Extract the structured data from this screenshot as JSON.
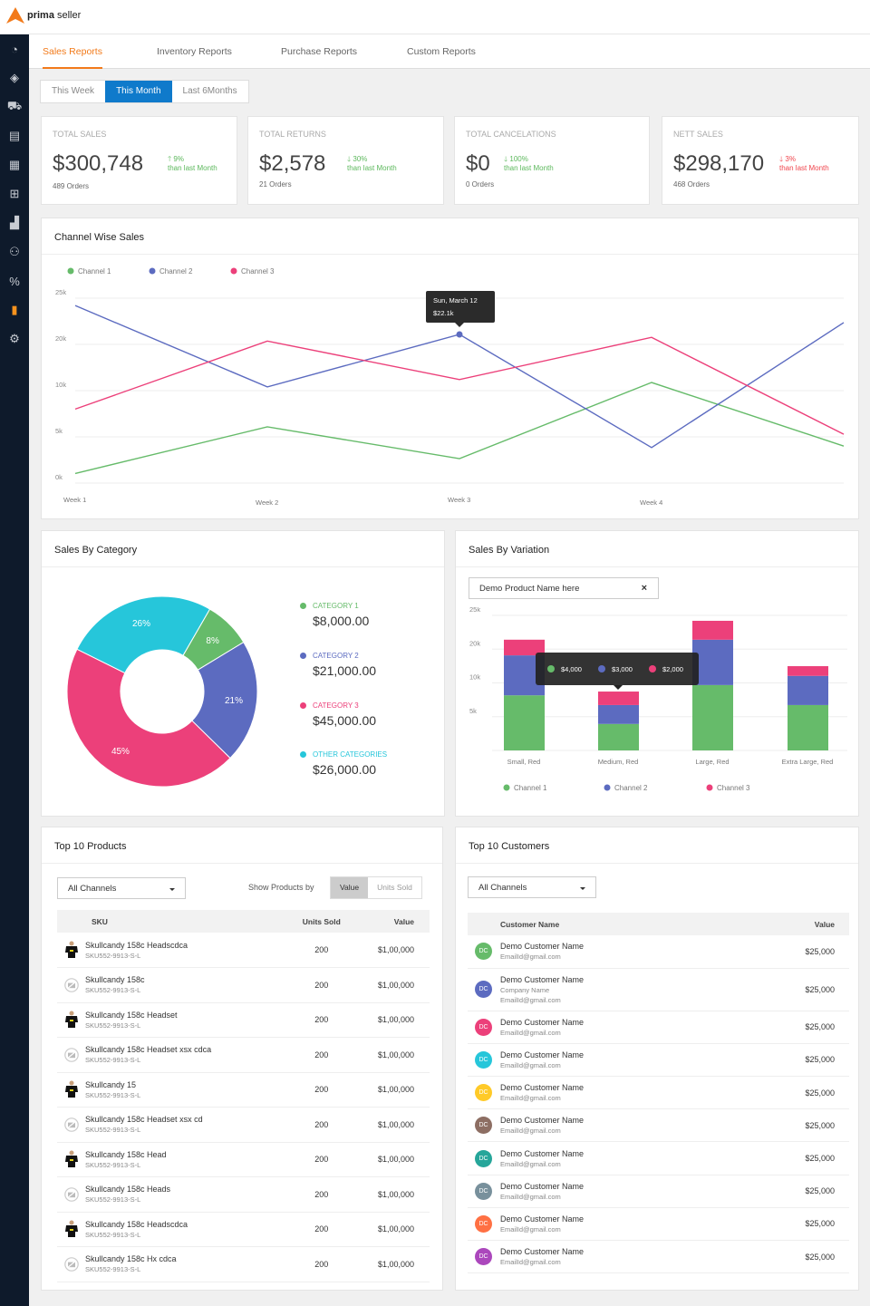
{
  "app": {
    "logo_bold": "prima",
    "logo_rest": "seller"
  },
  "sidebar": {
    "items": [
      {
        "icon": "dashboard-icon"
      },
      {
        "icon": "tag-icon"
      },
      {
        "icon": "cart-icon"
      },
      {
        "icon": "store-icon"
      },
      {
        "icon": "building-icon"
      },
      {
        "icon": "hierarchy-icon"
      },
      {
        "icon": "inventory-icon"
      },
      {
        "icon": "users-icon"
      },
      {
        "icon": "percent-icon"
      },
      {
        "icon": "bar-chart-icon",
        "active": true
      },
      {
        "icon": "gear-icon"
      }
    ]
  },
  "tabs": [
    "Sales Reports",
    "Inventory Reports",
    "Purchase Reports",
    "Custom Reports"
  ],
  "period": [
    "This Week",
    "This Month",
    "Last 6Months"
  ],
  "kpis": [
    {
      "label": "TOTAL SALES",
      "value": "$300,748",
      "change": "9%",
      "dir": "up",
      "note": "than last Month",
      "orders": "489 Orders",
      "color": "#5cb85c"
    },
    {
      "label": "TOTAL RETURNS",
      "value": "$2,578",
      "change": "30%",
      "dir": "down",
      "note": "than last Month",
      "orders": "21 Orders",
      "color": "#5cb85c"
    },
    {
      "label": "TOTAL CANCELATIONS",
      "value": "$0",
      "change": "100%",
      "dir": "down",
      "note": "than last Month",
      "orders": "0 Orders",
      "color": "#5cb85c"
    },
    {
      "label": "NETT SALES",
      "value": "$298,170",
      "change": "3%",
      "dir": "down",
      "note": "than last Month",
      "orders": "468 Orders",
      "color": "#f0464e"
    }
  ],
  "channel_chart": {
    "title": "Channel Wise Sales",
    "tooltip": {
      "title": "Sun, March 12",
      "value": "$22.1k"
    }
  },
  "category": {
    "title": "Sales By Category",
    "items": [
      {
        "label": "CATEGORY 1",
        "value": "$8,000.00",
        "pct": 8,
        "pct_label": "8%",
        "color": "#66bb6a"
      },
      {
        "label": "CATEGORY 2",
        "value": "$21,000.00",
        "pct": 21,
        "pct_label": "21%",
        "color": "#5c6bc0"
      },
      {
        "label": "CATEGORY 3",
        "value": "$45,000.00",
        "pct": 45,
        "pct_label": "45%",
        "color": "#ec407a"
      },
      {
        "label": "OTHER CATEGORIES",
        "value": "$26,000.00",
        "pct": 26,
        "pct_label": "26%",
        "color": "#26c6da"
      }
    ]
  },
  "variation": {
    "title": "Sales By Variation",
    "product": "Demo Product Name here",
    "clear": "×",
    "tooltip": [
      "$4,000",
      "$3,000",
      "$2,000"
    ]
  },
  "chart_data": [
    {
      "type": "line",
      "title": "Channel Wise Sales",
      "categories": [
        "Week 1",
        "Week 2",
        "Week 3",
        "Week 4",
        ""
      ],
      "yticks": [
        "0k",
        "5k",
        "10k",
        "20k",
        "25k"
      ],
      "ylim": [
        0,
        25
      ],
      "series": [
        {
          "name": "Channel 1",
          "color": "#66bb6a",
          "values": [
            1.3,
            7.6,
            3.3,
            13.6,
            5
          ]
        },
        {
          "name": "Channel 2",
          "color": "#5c6bc0",
          "values": [
            24,
            13,
            20.1,
            4.8,
            21.7
          ]
        },
        {
          "name": "Channel 3",
          "color": "#ec407a",
          "values": [
            10,
            19.2,
            14,
            19.7,
            6.6
          ]
        }
      ],
      "legend": "top-left",
      "grid": true
    },
    {
      "type": "bar",
      "stacked": true,
      "title": "Sales By Variation",
      "categories": [
        "Small, Red",
        "Medium, Red",
        "Large, Red",
        "Extra Large, Red"
      ],
      "yticks": [
        "",
        "5k",
        "10k",
        "20k",
        "25k"
      ],
      "ylim": [
        0,
        25
      ],
      "series": [
        {
          "name": "Channel 1",
          "color": "#66bb6a",
          "values": [
            10.2,
            4.9,
            12.1,
            8.4
          ]
        },
        {
          "name": "Channel 2",
          "color": "#5c6bc0",
          "values": [
            7.4,
            3.5,
            8.4,
            5.4
          ]
        },
        {
          "name": "Channel 3",
          "color": "#ec407a",
          "values": [
            2.9,
            2.5,
            3.5,
            1.8
          ]
        }
      ],
      "legend": "bottom"
    }
  ],
  "products": {
    "title": "Top 10 Products",
    "channel": "All Channels",
    "show_by": "Show Products by",
    "toggle": [
      "Value",
      "Units Sold"
    ],
    "columns": [
      "SKU",
      "Units Sold",
      "Value"
    ],
    "rows": [
      {
        "name": "Skullcandy 158c Headscdca",
        "sku": "SKU552-9913-S-L",
        "units": "200",
        "value": "$1,00,000",
        "img": "shirt"
      },
      {
        "name": "Skullcandy 158c",
        "sku": "SKU552-9913-S-L",
        "units": "200",
        "value": "$1,00,000",
        "img": "none"
      },
      {
        "name": "Skullcandy 158c Headset",
        "sku": "SKU552-9913-S-L",
        "units": "200",
        "value": "$1,00,000",
        "img": "shirt"
      },
      {
        "name": "Skullcandy 158c Headset xsx cdca",
        "sku": "SKU552-9913-S-L",
        "units": "200",
        "value": "$1,00,000",
        "img": "none"
      },
      {
        "name": "Skullcandy 15",
        "sku": "SKU552-9913-S-L",
        "units": "200",
        "value": "$1,00,000",
        "img": "shirt"
      },
      {
        "name": "Skullcandy 158c Headset xsx cd",
        "sku": "SKU552-9913-S-L",
        "units": "200",
        "value": "$1,00,000",
        "img": "none"
      },
      {
        "name": "Skullcandy 158c Head",
        "sku": "SKU552-9913-S-L",
        "units": "200",
        "value": "$1,00,000",
        "img": "shirt"
      },
      {
        "name": "Skullcandy 158c Heads",
        "sku": "SKU552-9913-S-L",
        "units": "200",
        "value": "$1,00,000",
        "img": "none"
      },
      {
        "name": "Skullcandy 158c Headscdca",
        "sku": "SKU552-9913-S-L",
        "units": "200",
        "value": "$1,00,000",
        "img": "shirt"
      },
      {
        "name": "Skullcandy 158c Hx cdca",
        "sku": "SKU552-9913-S-L",
        "units": "200",
        "value": "$1,00,000",
        "img": "none"
      }
    ]
  },
  "customers": {
    "title": "Top 10 Customers",
    "channel": "All Channels",
    "columns": [
      "Customer Name",
      "Value"
    ],
    "rows": [
      {
        "initials": "DC",
        "name": "Demo Customer Name",
        "email": "EmailId@gmail.com",
        "value": "$25,000",
        "color": "#66bb6a"
      },
      {
        "initials": "DC",
        "name": "Demo Customer Name",
        "company": "Company Name",
        "email": "EmailId@gmail.com",
        "value": "$25,000",
        "color": "#5c6bc0"
      },
      {
        "initials": "DC",
        "name": "Demo Customer Name",
        "email": "EmailId@gmail.com",
        "value": "$25,000",
        "color": "#ec407a"
      },
      {
        "initials": "DC",
        "name": "Demo Customer Name",
        "email": "EmailId@gmail.com",
        "value": "$25,000",
        "color": "#26c6da"
      },
      {
        "initials": "DC",
        "name": "Demo Customer Name",
        "email": "EmailId@gmail.com",
        "value": "$25,000",
        "color": "#ffca28"
      },
      {
        "initials": "DC",
        "name": "Demo Customer Name",
        "email": "EmailId@gmail.com",
        "value": "$25,000",
        "color": "#8d6e63"
      },
      {
        "initials": "DC",
        "name": "Demo Customer Name",
        "email": "EmailId@gmail.com",
        "value": "$25,000",
        "color": "#26a69a"
      },
      {
        "initials": "DC",
        "name": "Demo Customer Name",
        "email": "EmailId@gmail.com",
        "value": "$25,000",
        "color": "#78909c"
      },
      {
        "initials": "DC",
        "name": "Demo Customer Name",
        "email": "EmailId@gmail.com",
        "value": "$25,000",
        "color": "#ff7043"
      },
      {
        "initials": "DC",
        "name": "Demo Customer Name",
        "email": "EmailId@gmail.com",
        "value": "$25,000",
        "color": "#ab47bc"
      }
    ]
  }
}
